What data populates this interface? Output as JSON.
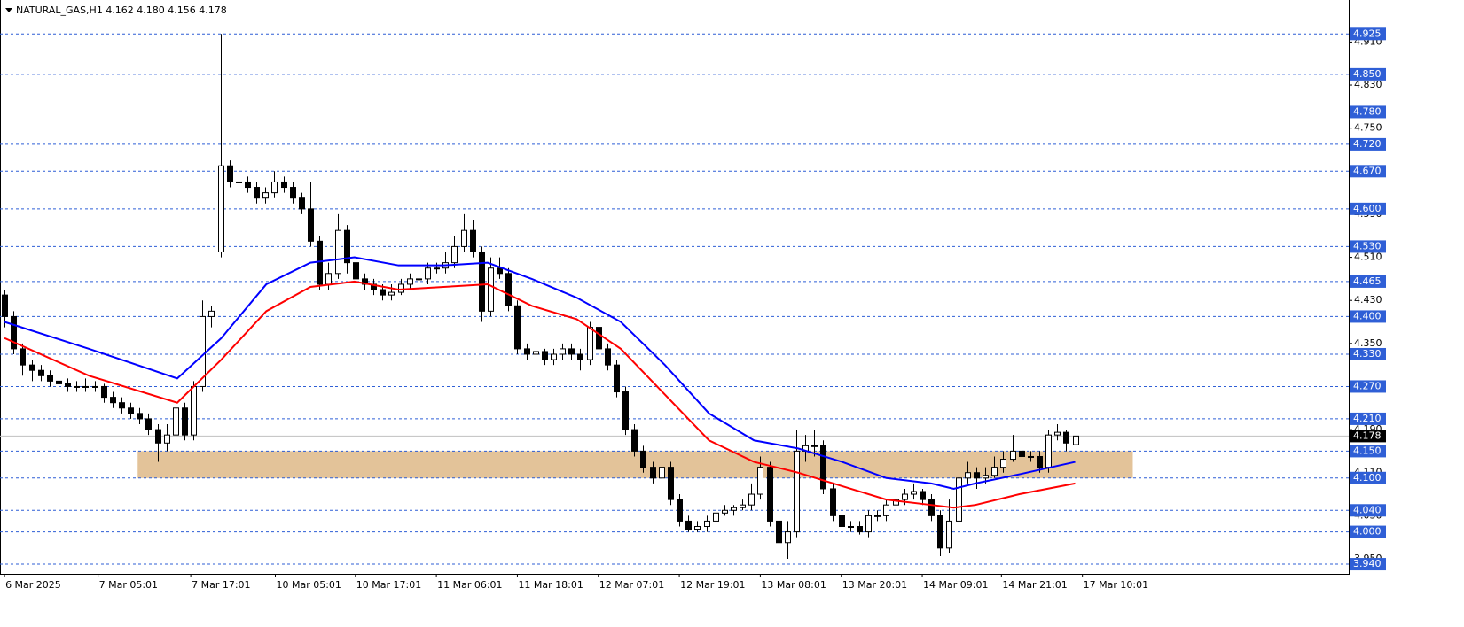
{
  "chart_data": {
    "type": "candlestick",
    "title": "NATURAL_GAS,H1  4.162 4.180 4.156 4.178",
    "xlim": [
      -0.5,
      149.4
    ],
    "ylim": [
      3.922,
      4.988
    ],
    "xticks": [
      {
        "value": 0,
        "label": "6 Mar 2025"
      },
      {
        "value": 10.4,
        "label": "7 Mar 05:01"
      },
      {
        "value": 20.7,
        "label": "7 Mar 17:01"
      },
      {
        "value": 30.1,
        "label": "10 Mar 05:01"
      },
      {
        "value": 39,
        "label": "10 Mar 17:01"
      },
      {
        "value": 48,
        "label": "11 Mar 06:01"
      },
      {
        "value": 57,
        "label": "11 Mar 18:01"
      },
      {
        "value": 66,
        "label": "12 Mar 07:01"
      },
      {
        "value": 75,
        "label": "12 Mar 19:01"
      },
      {
        "value": 84,
        "label": "13 Mar 08:01"
      },
      {
        "value": 93,
        "label": "13 Mar 20:01"
      },
      {
        "value": 102,
        "label": "14 Mar 09:01"
      },
      {
        "value": 110.8,
        "label": "14 Mar 21:01"
      },
      {
        "value": 119.8,
        "label": "17 Mar 10:01"
      }
    ],
    "yticks": [
      {
        "value": 4.91,
        "label": "4.910"
      },
      {
        "value": 4.83,
        "label": "4.830"
      },
      {
        "value": 4.75,
        "label": "4.750"
      },
      {
        "value": 4.59,
        "label": "4.590"
      },
      {
        "value": 4.51,
        "label": "4.510"
      },
      {
        "value": 4.43,
        "label": "4.430"
      },
      {
        "value": 4.35,
        "label": "4.350"
      },
      {
        "value": 4.19,
        "label": "4.190"
      },
      {
        "value": 4.11,
        "label": "4.110"
      },
      {
        "value": 4.03,
        "label": "4.030"
      },
      {
        "value": 3.95,
        "label": "3.950"
      }
    ],
    "levels": [
      {
        "value": 4.925,
        "label": "4.925"
      },
      {
        "value": 4.85,
        "label": "4.850"
      },
      {
        "value": 4.78,
        "label": "4.780"
      },
      {
        "value": 4.72,
        "label": "4.720"
      },
      {
        "value": 4.67,
        "label": "4.670"
      },
      {
        "value": 4.6,
        "label": "4.600"
      },
      {
        "value": 4.53,
        "label": "4.530"
      },
      {
        "value": 4.465,
        "label": "4.465"
      },
      {
        "value": 4.4,
        "label": "4.400"
      },
      {
        "value": 4.33,
        "label": "4.330"
      },
      {
        "value": 4.27,
        "label": "4.270"
      },
      {
        "value": 4.21,
        "label": "4.210"
      },
      {
        "value": 4.15,
        "label": "4.150"
      },
      {
        "value": 4.1,
        "label": "4.100"
      },
      {
        "value": 4.04,
        "label": "4.040"
      },
      {
        "value": 4.0,
        "label": "4.000"
      },
      {
        "value": 3.94,
        "label": "3.940"
      }
    ],
    "level_color": "#2f5fd6",
    "current_price": {
      "value": 4.178,
      "label": "4.178"
    },
    "zone": {
      "xlim": [
        14.8,
        125.4
      ],
      "ylim": [
        4.1,
        4.15
      ],
      "color": "#deb887"
    },
    "up_color": "#ffffff",
    "down_color": "#000000",
    "candles": [
      [
        4.44,
        4.45,
        4.38,
        4.4
      ],
      [
        4.4,
        4.41,
        4.33,
        4.34
      ],
      [
        4.34,
        4.35,
        4.29,
        4.31
      ],
      [
        4.31,
        4.32,
        4.28,
        4.3
      ],
      [
        4.3,
        4.31,
        4.28,
        4.29
      ],
      [
        4.29,
        4.3,
        4.27,
        4.28
      ],
      [
        4.28,
        4.29,
        4.27,
        4.275
      ],
      [
        4.275,
        4.285,
        4.26,
        4.27
      ],
      [
        4.27,
        4.28,
        4.26,
        4.27
      ],
      [
        4.27,
        4.285,
        4.26,
        4.27
      ],
      [
        4.27,
        4.28,
        4.26,
        4.27
      ],
      [
        4.27,
        4.275,
        4.24,
        4.25
      ],
      [
        4.25,
        4.26,
        4.23,
        4.24
      ],
      [
        4.24,
        4.25,
        4.22,
        4.23
      ],
      [
        4.23,
        4.24,
        4.21,
        4.22
      ],
      [
        4.22,
        4.23,
        4.2,
        4.21
      ],
      [
        4.21,
        4.22,
        4.18,
        4.19
      ],
      [
        4.19,
        4.2,
        4.13,
        4.165
      ],
      [
        4.165,
        4.2,
        4.15,
        4.18
      ],
      [
        4.18,
        4.26,
        4.17,
        4.23
      ],
      [
        4.23,
        4.24,
        4.17,
        4.18
      ],
      [
        4.18,
        4.28,
        4.17,
        4.27
      ],
      [
        4.27,
        4.43,
        4.26,
        4.4
      ],
      [
        4.4,
        4.42,
        4.38,
        4.41
      ],
      [
        4.52,
        4.925,
        4.51,
        4.68
      ],
      [
        4.68,
        4.69,
        4.64,
        4.65
      ],
      [
        4.65,
        4.67,
        4.63,
        4.65
      ],
      [
        4.65,
        4.66,
        4.63,
        4.64
      ],
      [
        4.64,
        4.65,
        4.61,
        4.62
      ],
      [
        4.62,
        4.64,
        4.61,
        4.63
      ],
      [
        4.63,
        4.67,
        4.62,
        4.65
      ],
      [
        4.65,
        4.66,
        4.63,
        4.64
      ],
      [
        4.64,
        4.65,
        4.61,
        4.62
      ],
      [
        4.62,
        4.63,
        4.59,
        4.6
      ],
      [
        4.6,
        4.65,
        4.53,
        4.54
      ],
      [
        4.54,
        4.55,
        4.45,
        4.46
      ],
      [
        4.46,
        4.5,
        4.45,
        4.48
      ],
      [
        4.48,
        4.59,
        4.47,
        4.56
      ],
      [
        4.56,
        4.57,
        4.48,
        4.5
      ],
      [
        4.5,
        4.51,
        4.46,
        4.47
      ],
      [
        4.47,
        4.48,
        4.45,
        4.46
      ],
      [
        4.46,
        4.47,
        4.44,
        4.45
      ],
      [
        4.45,
        4.46,
        4.43,
        4.44
      ],
      [
        4.44,
        4.46,
        4.43,
        4.445
      ],
      [
        4.445,
        4.47,
        4.44,
        4.46
      ],
      [
        4.46,
        4.48,
        4.45,
        4.47
      ],
      [
        4.47,
        4.48,
        4.46,
        4.47
      ],
      [
        4.47,
        4.5,
        4.46,
        4.49
      ],
      [
        4.49,
        4.5,
        4.48,
        4.49
      ],
      [
        4.49,
        4.52,
        4.48,
        4.5
      ],
      [
        4.5,
        4.55,
        4.49,
        4.53
      ],
      [
        4.53,
        4.59,
        4.52,
        4.56
      ],
      [
        4.56,
        4.58,
        4.51,
        4.52
      ],
      [
        4.52,
        4.53,
        4.39,
        4.41
      ],
      [
        4.41,
        4.51,
        4.4,
        4.49
      ],
      [
        4.49,
        4.51,
        4.47,
        4.48
      ],
      [
        4.48,
        4.49,
        4.41,
        4.42
      ],
      [
        4.42,
        4.43,
        4.33,
        4.34
      ],
      [
        4.34,
        4.35,
        4.32,
        4.33
      ],
      [
        4.33,
        4.35,
        4.32,
        4.335
      ],
      [
        4.335,
        4.34,
        4.31,
        4.32
      ],
      [
        4.32,
        4.34,
        4.31,
        4.33
      ],
      [
        4.33,
        4.35,
        4.32,
        4.34
      ],
      [
        4.34,
        4.35,
        4.32,
        4.33
      ],
      [
        4.33,
        4.34,
        4.3,
        4.32
      ],
      [
        4.32,
        4.39,
        4.31,
        4.38
      ],
      [
        4.38,
        4.39,
        4.33,
        4.34
      ],
      [
        4.34,
        4.35,
        4.3,
        4.31
      ],
      [
        4.31,
        4.32,
        4.25,
        4.26
      ],
      [
        4.26,
        4.27,
        4.18,
        4.19
      ],
      [
        4.19,
        4.2,
        4.14,
        4.15
      ],
      [
        4.15,
        4.16,
        4.11,
        4.12
      ],
      [
        4.12,
        4.13,
        4.09,
        4.1
      ],
      [
        4.1,
        4.14,
        4.09,
        4.12
      ],
      [
        4.12,
        4.13,
        4.05,
        4.06
      ],
      [
        4.06,
        4.07,
        4.01,
        4.02
      ],
      [
        4.02,
        4.03,
        4.0,
        4.005
      ],
      [
        4.005,
        4.02,
        4.0,
        4.01
      ],
      [
        4.01,
        4.03,
        4.0,
        4.02
      ],
      [
        4.02,
        4.04,
        4.01,
        4.035
      ],
      [
        4.035,
        4.05,
        4.03,
        4.04
      ],
      [
        4.04,
        4.05,
        4.03,
        4.045
      ],
      [
        4.045,
        4.06,
        4.04,
        4.05
      ],
      [
        4.05,
        4.09,
        4.04,
        4.07
      ],
      [
        4.07,
        4.14,
        4.06,
        4.12
      ],
      [
        4.12,
        4.13,
        4.01,
        4.02
      ],
      [
        4.02,
        4.03,
        3.945,
        3.98
      ],
      [
        3.98,
        4.02,
        3.95,
        4.0
      ],
      [
        4.0,
        4.19,
        3.99,
        4.15
      ],
      [
        4.15,
        4.18,
        4.13,
        4.16
      ],
      [
        4.16,
        4.19,
        4.14,
        4.16
      ],
      [
        4.16,
        4.17,
        4.07,
        4.08
      ],
      [
        4.08,
        4.09,
        4.02,
        4.03
      ],
      [
        4.03,
        4.04,
        4.0,
        4.01
      ],
      [
        4.01,
        4.02,
        4.0,
        4.01
      ],
      [
        4.01,
        4.02,
        3.995,
        4.0
      ],
      [
        4.0,
        4.04,
        3.99,
        4.03
      ],
      [
        4.03,
        4.04,
        4.02,
        4.03
      ],
      [
        4.03,
        4.06,
        4.02,
        4.05
      ],
      [
        4.05,
        4.07,
        4.04,
        4.06
      ],
      [
        4.06,
        4.08,
        4.05,
        4.07
      ],
      [
        4.07,
        4.09,
        4.06,
        4.075
      ],
      [
        4.075,
        4.08,
        4.05,
        4.06
      ],
      [
        4.06,
        4.07,
        4.02,
        4.03
      ],
      [
        4.03,
        4.04,
        3.955,
        3.97
      ],
      [
        3.97,
        4.06,
        3.96,
        4.02
      ],
      [
        4.02,
        4.14,
        4.01,
        4.1
      ],
      [
        4.1,
        4.13,
        4.09,
        4.11
      ],
      [
        4.11,
        4.12,
        4.08,
        4.1
      ],
      [
        4.1,
        4.12,
        4.09,
        4.105
      ],
      [
        4.105,
        4.14,
        4.1,
        4.12
      ],
      [
        4.12,
        4.15,
        4.11,
        4.135
      ],
      [
        4.135,
        4.18,
        4.13,
        4.15
      ],
      [
        4.15,
        4.16,
        4.13,
        4.14
      ],
      [
        4.14,
        4.15,
        4.13,
        4.14
      ],
      [
        4.14,
        4.15,
        4.11,
        4.12
      ],
      [
        4.12,
        4.19,
        4.11,
        4.18
      ],
      [
        4.18,
        4.2,
        4.17,
        4.185
      ],
      [
        4.185,
        4.19,
        4.15,
        4.165
      ],
      [
        4.162,
        4.18,
        4.156,
        4.178
      ]
    ],
    "lines": [
      {
        "color": "#0000ff",
        "x": [
          0,
          9.4,
          19.2,
          24.1,
          29.1,
          34,
          38.9,
          43.8,
          48.8,
          53.7,
          58.6,
          63.6,
          68.5,
          73.4,
          78.3,
          83.3,
          88.2,
          93.1,
          98,
          103,
          105.5,
          107.9,
          112.8,
          119
        ],
        "values": [
          4.39,
          4.34,
          4.285,
          4.36,
          4.46,
          4.5,
          4.51,
          4.495,
          4.495,
          4.5,
          4.47,
          4.435,
          4.39,
          4.31,
          4.22,
          4.17,
          4.155,
          4.13,
          4.1,
          4.09,
          4.08,
          4.09,
          4.107,
          4.13
        ]
      },
      {
        "color": "#ff0000",
        "x": [
          0,
          9.4,
          19.2,
          24.1,
          29.1,
          34,
          38.9,
          43.8,
          48.8,
          53.7,
          58.6,
          63.6,
          68.5,
          73.4,
          78.3,
          83.3,
          88.2,
          93.1,
          98,
          103,
          105.5,
          107.9,
          112.8,
          119
        ],
        "values": [
          4.36,
          4.29,
          4.24,
          4.32,
          4.41,
          4.455,
          4.465,
          4.45,
          4.455,
          4.46,
          4.42,
          4.395,
          4.34,
          4.255,
          4.17,
          4.13,
          4.11,
          4.085,
          4.06,
          4.05,
          4.045,
          4.05,
          4.07,
          4.09
        ]
      }
    ]
  }
}
